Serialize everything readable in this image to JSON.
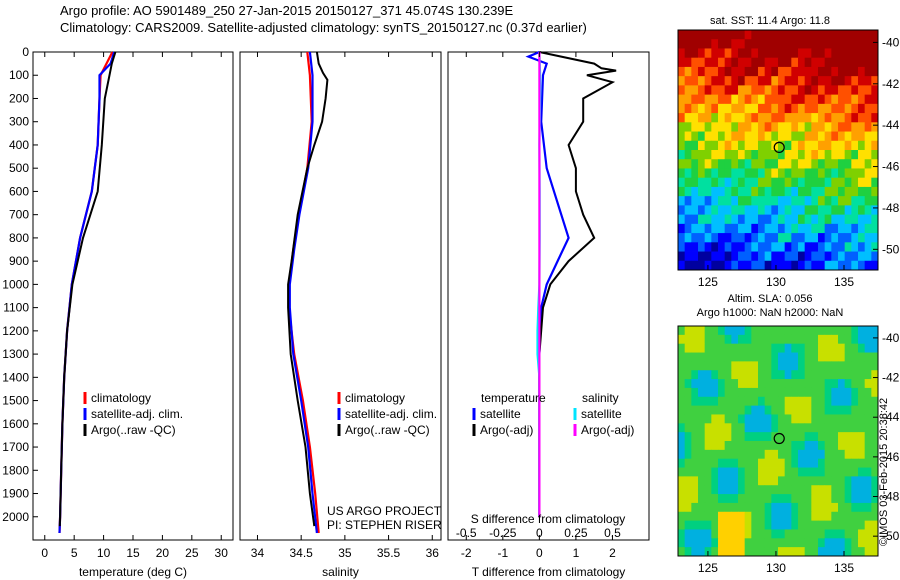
{
  "header": {
    "line1": "Argo profile: AO 5901489_250 27-Jan-2015 20150127_371 45.074S 130.239E",
    "line2": "Climatology: CARS2009. Satellite-adjusted climatology: synTS_20150127.nc (0.37d earlier)"
  },
  "stamp": "©IMOS 03-Feb-2015 20:38:42",
  "colors": {
    "climatology": "#ff0000",
    "satellite": "#0000ff",
    "argo": "#000000",
    "cyan": "#00e5ff",
    "magenta": "#ff00ff"
  },
  "chart_data": [
    {
      "type": "line",
      "xlabel": "temperature (deg C)",
      "xlim": [
        -2,
        32
      ],
      "ylim": [
        2100,
        0
      ],
      "xticks": [
        "0",
        "5",
        "10",
        "15",
        "20",
        "25",
        "30"
      ],
      "yticks": [
        "0",
        "100",
        "200",
        "300",
        "400",
        "500",
        "600",
        "700",
        "800",
        "900",
        "1000",
        "1100",
        "1200",
        "1300",
        "1400",
        "1500",
        "1600",
        "1700",
        "1800",
        "1900",
        "2000"
      ],
      "legend": [
        "climatology",
        "satellite-adj. clim.",
        "Argo(..raw -QC)"
      ],
      "series": [
        {
          "name": "climatology",
          "color": "#ff0000",
          "depth": [
            0,
            100,
            200,
            400,
            600,
            800,
            1000,
            1200,
            1400,
            1600,
            1800,
            2000,
            2070
          ],
          "values": [
            11.5,
            9.5,
            9.3,
            9.0,
            8.0,
            6.0,
            4.6,
            3.8,
            3.3,
            3.0,
            2.8,
            2.6,
            2.5
          ]
        },
        {
          "name": "satellite-adj. clim.",
          "color": "#0000ff",
          "depth": [
            0,
            50,
            100,
            200,
            400,
            600,
            800,
            1000,
            1200,
            1400,
            1600,
            1800,
            2000,
            2070
          ],
          "values": [
            11.8,
            11.2,
            9.3,
            9.3,
            9.0,
            8.0,
            6.0,
            4.6,
            3.8,
            3.3,
            3.0,
            2.8,
            2.6,
            2.5
          ]
        },
        {
          "name": "Argo(..raw -QC)",
          "color": "#000000",
          "depth": [
            0,
            50,
            100,
            200,
            400,
            600,
            800,
            1000,
            1200,
            1400,
            1600,
            1800,
            2000,
            2040
          ],
          "values": [
            12.0,
            11.4,
            11.0,
            10.2,
            9.7,
            9.0,
            6.5,
            4.7,
            3.8,
            3.3,
            3.0,
            2.8,
            2.6,
            2.55
          ]
        }
      ]
    },
    {
      "type": "line",
      "xlabel": "salinity",
      "xlim": [
        33.8,
        36.1
      ],
      "ylim": [
        2100,
        0
      ],
      "xticks": [
        "34",
        "34.5",
        "35",
        "35.5",
        "36"
      ],
      "legend": [
        "climatology",
        "satellite-adj. clim.",
        "Argo(..raw -QC)"
      ],
      "annotations": [
        "US ARGO PROJECT",
        "PI: STEPHEN RISER"
      ],
      "series": [
        {
          "name": "climatology",
          "color": "#ff0000",
          "depth": [
            0,
            100,
            300,
            500,
            700,
            850,
            1000,
            1100,
            1300,
            1500,
            1700,
            1900,
            2070
          ],
          "values": [
            34.57,
            34.6,
            34.62,
            34.57,
            34.47,
            34.41,
            34.36,
            34.36,
            34.42,
            34.52,
            34.6,
            34.66,
            34.7
          ]
        },
        {
          "name": "satellite-adj. clim.",
          "color": "#0000ff",
          "depth": [
            0,
            100,
            300,
            500,
            700,
            850,
            1000,
            1100,
            1300,
            1500,
            1700,
            1900,
            2070
          ],
          "values": [
            34.6,
            34.63,
            34.63,
            34.58,
            34.48,
            34.42,
            34.37,
            34.37,
            34.41,
            34.5,
            34.58,
            34.63,
            34.68
          ]
        },
        {
          "name": "Argo(..raw -QC)",
          "color": "#000000",
          "depth": [
            0,
            50,
            90,
            120,
            200,
            300,
            400,
            500,
            700,
            900,
            1000,
            1100,
            1300,
            1500,
            1700,
            1900,
            2040
          ],
          "values": [
            34.68,
            34.7,
            34.75,
            34.8,
            34.78,
            34.74,
            34.65,
            34.57,
            34.46,
            34.39,
            34.35,
            34.35,
            34.38,
            34.46,
            34.55,
            34.6,
            34.65
          ]
        }
      ]
    },
    {
      "type": "line",
      "xlabel": "T difference from climatology",
      "xlabel2": "S difference from climatology",
      "xlim": [
        -2.5,
        3.0
      ],
      "ylim": [
        2100,
        0
      ],
      "xticks": [
        "-2",
        "-1",
        "0",
        "1",
        "2"
      ],
      "xticks_top": [
        "-0.5",
        "-0.25",
        "0",
        "0.25",
        "0.5"
      ],
      "legend_groups": [
        {
          "title": "temperature",
          "items": [
            "satellite",
            "Argo(-adj)"
          ]
        },
        {
          "title": "salinity",
          "items": [
            "satellite",
            "Argo(-adj)"
          ]
        }
      ],
      "series": [
        {
          "name": "temperature satellite",
          "color": "#0000ff",
          "depth": [
            0,
            20,
            50,
            100,
            300,
            500,
            700,
            800,
            900,
            1000,
            1100,
            1300,
            1500,
            2000
          ],
          "values": [
            0.0,
            -0.3,
            0.2,
            0.1,
            0.05,
            0.2,
            0.6,
            0.8,
            0.5,
            0.2,
            0.05,
            0.0,
            0.0,
            0.0
          ]
        },
        {
          "name": "temperature Argo(-adj)",
          "color": "#000000",
          "depth": [
            0,
            50,
            70,
            80,
            100,
            130,
            200,
            300,
            400,
            500,
            600,
            700,
            800,
            900,
            1000,
            1100,
            1300,
            1500,
            2000
          ],
          "values": [
            0.0,
            1.5,
            1.7,
            2.1,
            1.3,
            2.0,
            1.2,
            1.2,
            0.8,
            1.0,
            1.0,
            1.2,
            1.5,
            0.8,
            0.3,
            0.1,
            0.0,
            0.0,
            0.0
          ]
        },
        {
          "name": "salinity satellite",
          "color": "#00e5ff",
          "depth": [
            0,
            100,
            200,
            400,
            600,
            800,
            1000,
            1100,
            1200,
            1300,
            1400,
            1500,
            2000
          ],
          "values": [
            0.0,
            0.02,
            0.02,
            0.0,
            0.01,
            0.01,
            0.0,
            -0.03,
            -0.05,
            -0.05,
            0.0,
            0.0,
            0.0
          ]
        },
        {
          "name": "salinity Argo(-adj)",
          "color": "#ff00ff",
          "depth": [
            0,
            2000
          ],
          "values": [
            0.0,
            0.0
          ]
        }
      ]
    },
    {
      "type": "heatmap",
      "title": "sat. SST: 11.4 Argo: 11.8",
      "xticks": [
        "125",
        "130",
        "135"
      ],
      "yticks": [
        "-40",
        "-42",
        "-44",
        "-46",
        "-48",
        "-50"
      ],
      "marker": [
        130.239,
        -45.074
      ]
    },
    {
      "type": "heatmap",
      "title": "Altim. SLA: 0.056",
      "subtitle": "Argo h1000: NaN h2000: NaN",
      "xticks": [
        "125",
        "130",
        "135"
      ],
      "yticks": [
        "-40",
        "-42",
        "-44",
        "-46",
        "-48",
        "-50"
      ],
      "marker": [
        130.239,
        -45.074
      ]
    }
  ]
}
